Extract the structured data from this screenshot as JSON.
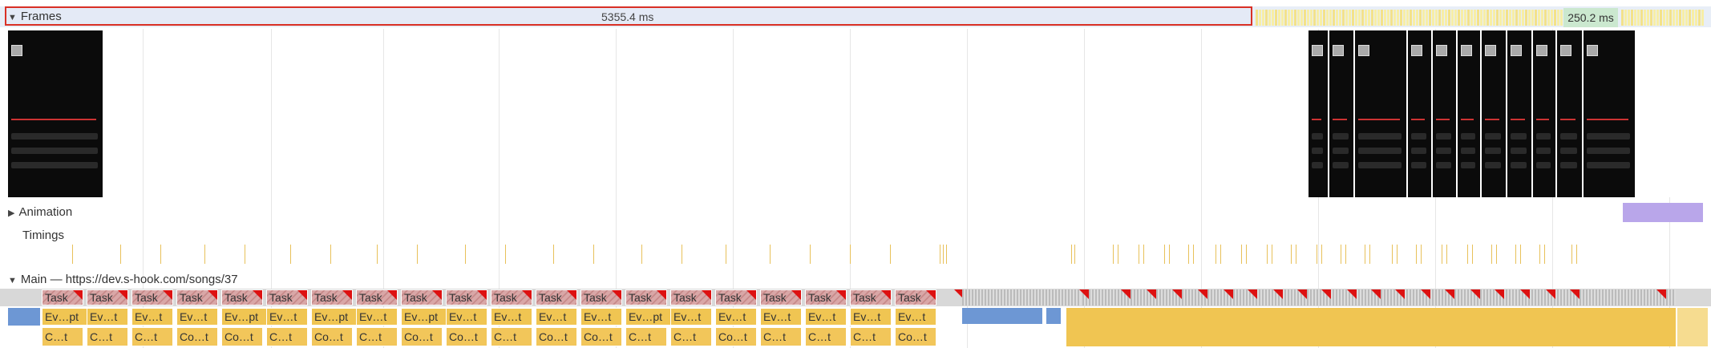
{
  "frames": {
    "label": "Frames",
    "duration_selected": "5355.4 ms",
    "duration_right": "250.2 ms"
  },
  "tracks": {
    "animation_label": "Animation",
    "timings_label": "Timings",
    "main_label": "Main — https://dev.s-hook.com/songs/37"
  },
  "main": {
    "tasks": [
      "Task",
      "Task",
      "Task",
      "Task",
      "Task",
      "Task",
      "Task",
      "Task",
      "Task",
      "Task",
      "Task",
      "Task",
      "Task",
      "Task",
      "Task",
      "Task",
      "Task",
      "Task",
      "Task",
      "Task"
    ],
    "events": [
      "Ev…pt",
      "Ev…t",
      "Ev…t",
      "Ev…t",
      "Ev…pt",
      "Ev…t",
      "Ev…pt",
      "Ev…t",
      "Ev…pt",
      "Ev…t",
      "Ev…t",
      "Ev…t",
      "Ev…t",
      "Ev…pt",
      "Ev…t",
      "Ev…t",
      "Ev…t",
      "Ev…t",
      "Ev…t",
      "Ev…t"
    ],
    "subs": [
      "C…t",
      "C…t",
      "C…t",
      "Co…t",
      "Co…t",
      "C…t",
      "Co…t",
      "C…t",
      "Co…t",
      "Co…t",
      "C…t",
      "Co…t",
      "Co…t",
      "C…t",
      "C…t",
      "Co…t",
      "C…t",
      "C…t",
      "C…t",
      "Co…t"
    ]
  },
  "colors": {
    "selection": "#d93025",
    "task_warning": "#dd1111",
    "scripting": "#f0c552",
    "rendering": "#6d97d4",
    "animation": "#b9a6ea"
  }
}
